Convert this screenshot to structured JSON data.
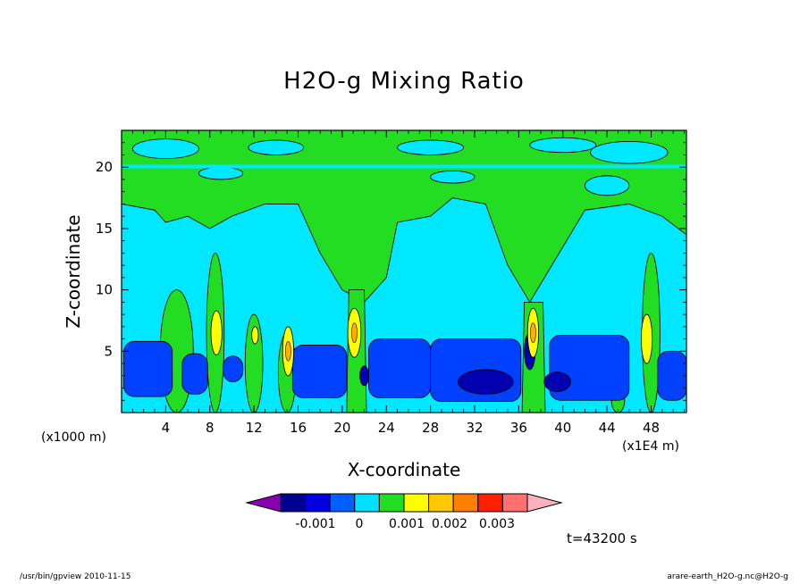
{
  "chart_data": {
    "type": "heatmap",
    "title": "H2O-g Mixing Ratio",
    "xlabel": "X-coordinate",
    "ylabel": "Z-coordinate",
    "x_unit_left": "(x1000 m)",
    "x_unit_right": "(x1E4 m)",
    "x_ticks": [
      4,
      8,
      12,
      16,
      20,
      24,
      28,
      32,
      36,
      40,
      44,
      48
    ],
    "y_ticks": [
      5,
      10,
      15,
      20
    ],
    "xlim": [
      0,
      51.2
    ],
    "ylim": [
      0,
      23
    ],
    "colorbar": {
      "colors": [
        "#8800b0",
        "#000090",
        "#0000e0",
        "#0060ff",
        "#00e0ff",
        "#22dd22",
        "#ffff00",
        "#ffc800",
        "#ff8000",
        "#ff2000",
        "#ff7070",
        "#ffb0c0"
      ],
      "labels": [
        "-0.001",
        "0",
        "0.001",
        "0.002",
        "0.003"
      ]
    },
    "regions": [
      {
        "level": "cyan",
        "x": [
          0,
          51.2
        ],
        "z": [
          0,
          23
        ]
      },
      {
        "level": "green",
        "x": [
          18,
          26
        ],
        "z": [
          10,
          18
        ]
      },
      {
        "level": "green",
        "x": [
          35,
          40
        ],
        "z": [
          9,
          18
        ]
      },
      {
        "level": "green",
        "x": [
          0,
          51.2
        ],
        "z": [
          17,
          23
        ]
      },
      {
        "level": "blue",
        "x": [
          0,
          51.2
        ],
        "z": [
          1,
          6
        ]
      },
      {
        "level": "yellow",
        "x": [
          21,
          22
        ],
        "z": [
          5,
          8
        ]
      },
      {
        "level": "yellow",
        "x": [
          37,
          38
        ],
        "z": [
          5,
          8
        ]
      }
    ]
  },
  "time_label": "t=43200 s",
  "footer_left": "/usr/bin/gpview   2010-11-15",
  "footer_right": "arare-earth_H2O-g.nc@H2O-g"
}
